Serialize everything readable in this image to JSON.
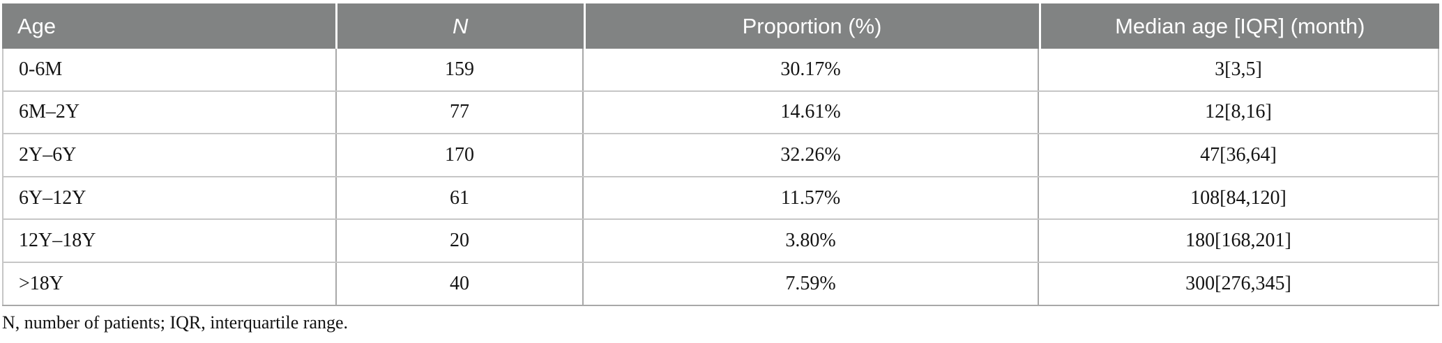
{
  "table": {
    "columns": {
      "age": "Age",
      "n": "N",
      "proportion": "Proportion (%)",
      "median": "Median age [IQR] (month)"
    },
    "rows": [
      {
        "age": "0-6M",
        "n": "159",
        "proportion": "30.17%",
        "median": "3[3,5]"
      },
      {
        "age": "6M–2Y",
        "n": "77",
        "proportion": "14.61%",
        "median": "12[8,16]"
      },
      {
        "age": "2Y–6Y",
        "n": "170",
        "proportion": "32.26%",
        "median": "47[36,64]"
      },
      {
        "age": "6Y–12Y",
        "n": "61",
        "proportion": "11.57%",
        "median": "108[84,120]"
      },
      {
        "age": "12Y–18Y",
        "n": "20",
        "proportion": "3.80%",
        "median": "180[168,201]"
      },
      {
        "age": ">18Y",
        "n": "40",
        "proportion": "7.59%",
        "median": "300[276,345]"
      }
    ],
    "footnote": "N, number of patients; IQR, interquartile range."
  },
  "colors": {
    "header_bg": "#818383",
    "header_text": "#ffffff",
    "body_text": "#141414",
    "row_line": "#c6c6c6",
    "column_line": "#a8a8a8"
  }
}
